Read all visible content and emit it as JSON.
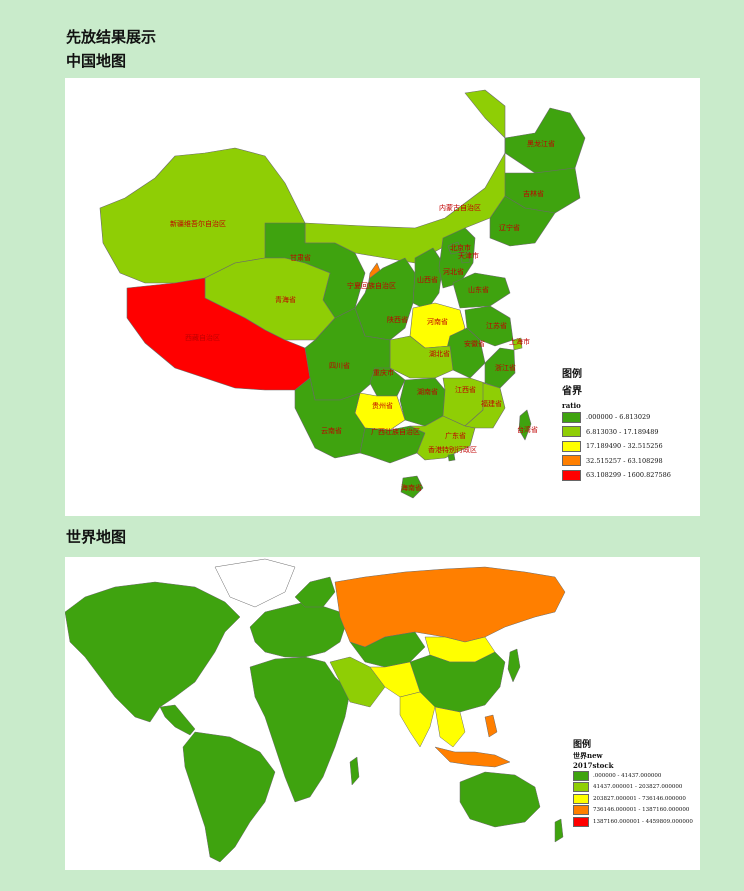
{
  "page": {
    "heading": "先放结果展示",
    "china_section_title": "中国地图",
    "world_section_title": "世界地图"
  },
  "colors": {
    "class1": "#3fa30f",
    "class2": "#8fce05",
    "class3": "#ffff00",
    "class4": "#ff7f00",
    "class5": "#ff0000",
    "boundary": "#6a6a6a",
    "label": "#c00000",
    "background": "#c9ebcb"
  },
  "china_map": {
    "province_labels": {
      "heilongjiang": "黑龙江省",
      "jilin": "吉林省",
      "liaoning": "辽宁省",
      "neimenggu": "内蒙古自治区",
      "xinjiang": "新疆维吾尔自治区",
      "xizang": "西藏自治区",
      "qinghai": "青海省",
      "gansu": "甘肃省",
      "ningxia": "宁夏回族自治区",
      "shaanxi": "陕西省",
      "shanxi": "山西省",
      "hebei": "河北省",
      "beijing": "北京市",
      "tianjin": "天津市",
      "shandong": "山东省",
      "henan": "河南省",
      "jiangsu": "江苏省",
      "anhui": "安徽省",
      "shanghai": "上海市",
      "hubei": "湖北省",
      "zhejiang": "浙江省",
      "sichuan": "四川省",
      "chongqing": "重庆市",
      "hunan": "湖南省",
      "jiangxi": "江西省",
      "fujian": "福建省",
      "guizhou": "贵州省",
      "yunnan": "云南省",
      "guangxi": "广西壮族自治区",
      "guangdong": "广东省",
      "hongkong": "香港特别行政区",
      "hainan": "海南省",
      "taiwan": "台湾省"
    },
    "legend": {
      "title": "图例",
      "layer": "省界",
      "field": "ratio",
      "classes": [
        {
          "label": ".000000 - 6.813029",
          "color": "#3fa30f"
        },
        {
          "label": "6.813030 - 17.189489",
          "color": "#8fce05"
        },
        {
          "label": "17.189490 - 32.515256",
          "color": "#ffff00"
        },
        {
          "label": "32.515257 - 63.108298",
          "color": "#ff7f00"
        },
        {
          "label": "63.108299 - 1600.827586",
          "color": "#ff0000"
        }
      ]
    }
  },
  "world_map": {
    "legend": {
      "title": "图例",
      "layer": "世界new",
      "field": "2017stock",
      "classes": [
        {
          "label": ".000000 - 41437.000000",
          "color": "#3fa30f"
        },
        {
          "label": "41437.000001 - 203827.000000",
          "color": "#8fce05"
        },
        {
          "label": "203827.000001 - 736146.000000",
          "color": "#ffff00"
        },
        {
          "label": "736146.000001 - 1387160.000000",
          "color": "#ff7f00"
        },
        {
          "label": "1387160.000001 - 4459809.000000",
          "color": "#ff0000"
        }
      ]
    }
  }
}
